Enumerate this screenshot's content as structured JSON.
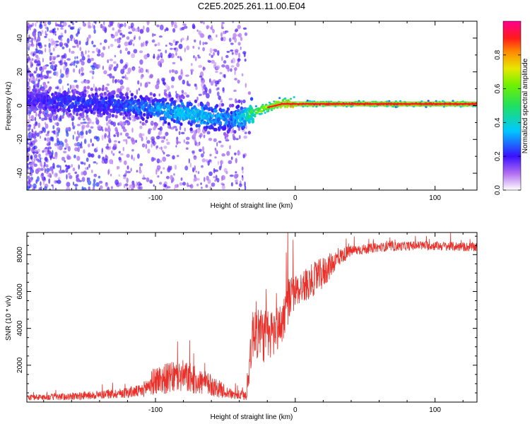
{
  "title": "C2E5.2025.261.11.00.E04",
  "chart_data": [
    {
      "type": "heatmap",
      "title": "C2E5.2025.261.11.00.E04",
      "xlabel": "Height of straight line (km)",
      "ylabel": "Frequency (Hz)",
      "xlim": [
        -192,
        130
      ],
      "ylim": [
        -50,
        50
      ],
      "xticks": [
        -100,
        0,
        100
      ],
      "yticks": [
        -40,
        -20,
        0,
        20,
        40
      ],
      "colorbar": {
        "label": "Normalized spectral amplitude",
        "range": [
          0.0,
          1.0
        ],
        "ticks": [
          "0.0",
          "0.2",
          "0.4",
          "0.6",
          "0.8"
        ]
      },
      "ridge": {
        "x": [
          -190,
          -160,
          -130,
          -110,
          -90,
          -75,
          -60,
          -45,
          -35,
          -20,
          -10,
          0,
          20,
          50,
          90,
          130
        ],
        "freq": [
          3,
          2,
          1,
          -1,
          -3,
          -5,
          -7,
          -8,
          -6,
          -1,
          1,
          1,
          1,
          1,
          1,
          1
        ],
        "peak_amplitude": [
          0.2,
          0.25,
          0.25,
          0.3,
          0.35,
          0.4,
          0.35,
          0.3,
          0.45,
          0.7,
          0.8,
          0.9,
          0.95,
          0.95,
          0.95,
          0.95
        ]
      }
    },
    {
      "type": "line",
      "xlabel": "Height of straight line (km)",
      "ylabel": "SNR (10 * v/v)",
      "xlim": [
        -192,
        130
      ],
      "ylim": [
        0,
        9200
      ],
      "xticks": [
        -100,
        0,
        100
      ],
      "yticks": [
        2000,
        4000,
        6000,
        8000
      ],
      "color": "#e8312a",
      "envelope": {
        "x": [
          -192,
          -160,
          -130,
          -110,
          -100,
          -80,
          -60,
          -45,
          -35,
          -30,
          -20,
          -10,
          -5,
          0,
          10,
          20,
          30,
          40,
          60,
          90,
          130
        ],
        "y": [
          250,
          300,
          450,
          600,
          1200,
          1400,
          900,
          400,
          350,
          4000,
          3500,
          4200,
          5500,
          6000,
          6500,
          7000,
          7800,
          8200,
          8400,
          8500,
          8400
        ],
        "noise": [
          150,
          200,
          250,
          350,
          800,
          900,
          600,
          250,
          300,
          1600,
          1500,
          1200,
          1300,
          900,
          900,
          900,
          500,
          300,
          250,
          250,
          250
        ]
      }
    }
  ]
}
